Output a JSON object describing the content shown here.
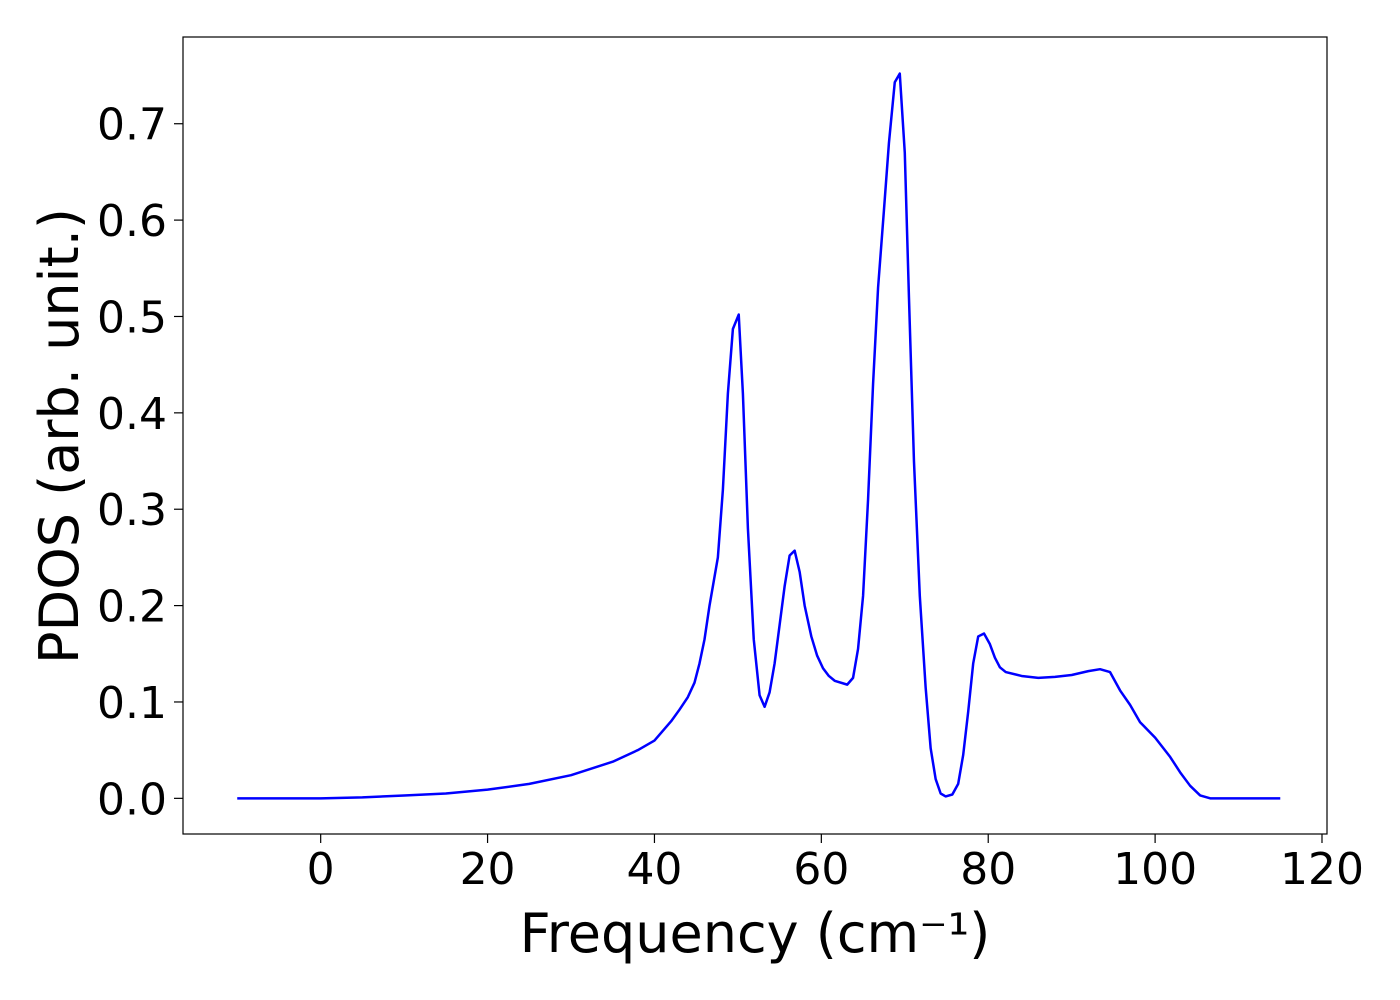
{
  "chart_data": {
    "type": "line",
    "xlabel": "Frequency (cm⁻¹)",
    "ylabel": "PDOS (arb. unit.)",
    "xlim": [
      -16.5,
      120.6
    ],
    "ylim": [
      -0.037,
      0.79
    ],
    "xticks": [
      0,
      20,
      40,
      60,
      80,
      100,
      120
    ],
    "yticks": [
      {
        "value": 0,
        "label": "0.0"
      },
      0.1,
      0.2,
      0.3,
      0.4,
      0.5,
      0.6,
      0.7
    ],
    "x": [
      -10,
      0,
      5,
      10,
      15,
      20,
      25,
      30,
      35,
      38,
      40,
      42,
      43,
      44,
      44.8,
      45.4,
      46,
      46.6,
      47.6,
      48.2,
      48.8,
      49.4,
      50.1,
      50.6,
      51.2,
      51.9,
      52.6,
      53.2,
      53.8,
      54.4,
      55.0,
      55.6,
      56.2,
      56.8,
      57.4,
      58.0,
      58.8,
      59.5,
      60.2,
      60.9,
      61.6,
      63.1,
      63.8,
      64.4,
      65.0,
      65.6,
      66.2,
      66.8,
      67.5,
      68.1,
      68.8,
      69.4,
      70.0,
      70.5,
      71.1,
      71.8,
      72.5,
      73.1,
      73.7,
      74.3,
      74.9,
      75.7,
      76.4,
      77.0,
      77.6,
      78.2,
      78.8,
      79.5,
      80.2,
      80.8,
      81.4,
      82.1,
      84,
      86,
      88,
      90,
      92,
      93.4,
      94.6,
      95.8,
      97,
      98.2,
      100,
      101.8,
      103,
      104.2,
      105.4,
      106.6,
      115
    ],
    "series": [
      {
        "color": "#0000ff",
        "values": [
          0,
          0,
          0.001,
          0.003,
          0.005,
          0.009,
          0.015,
          0.024,
          0.038,
          0.05,
          0.06,
          0.08,
          0.092,
          0.105,
          0.12,
          0.14,
          0.165,
          0.2,
          0.25,
          0.32,
          0.42,
          0.487,
          0.502,
          0.42,
          0.28,
          0.165,
          0.107,
          0.095,
          0.11,
          0.14,
          0.18,
          0.22,
          0.252,
          0.257,
          0.235,
          0.2,
          0.168,
          0.148,
          0.135,
          0.127,
          0.122,
          0.118,
          0.125,
          0.155,
          0.21,
          0.31,
          0.43,
          0.53,
          0.61,
          0.68,
          0.743,
          0.752,
          0.67,
          0.52,
          0.35,
          0.21,
          0.115,
          0.052,
          0.02,
          0.005,
          0.002,
          0.004,
          0.015,
          0.045,
          0.09,
          0.14,
          0.168,
          0.171,
          0.16,
          0.146,
          0.136,
          0.131,
          0.127,
          0.125,
          0.126,
          0.128,
          0.132,
          0.134,
          0.131,
          0.112,
          0.097,
          0.079,
          0.063,
          0.043,
          0.027,
          0.013,
          0.003,
          0,
          0
        ]
      }
    ]
  }
}
